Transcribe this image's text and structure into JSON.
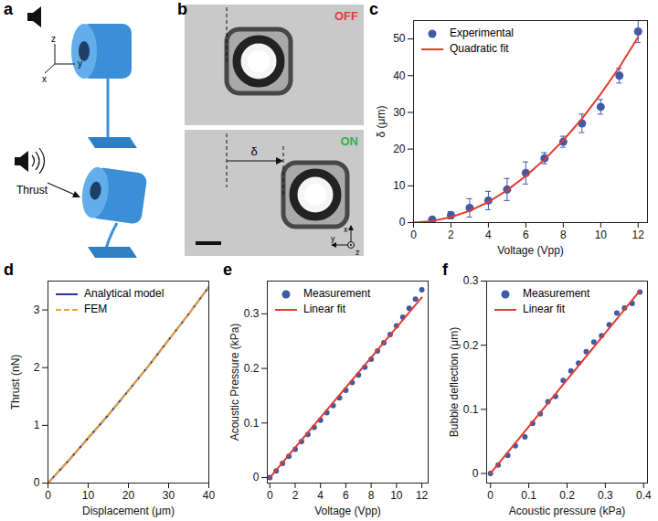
{
  "chart_data": [
    {
      "type": "diagram",
      "title": "a",
      "annotations": [
        "x",
        "y",
        "z",
        "Thrust"
      ]
    },
    {
      "type": "image",
      "title": "b",
      "annotations": [
        {
          "text": "OFF",
          "color": "#e8383d"
        },
        {
          "text": "ON",
          "color": "#2fb34a"
        },
        {
          "text": "δ"
        },
        {
          "text": "x"
        },
        {
          "text": "y"
        },
        {
          "text": "z"
        }
      ]
    },
    {
      "type": "scatter",
      "title": "c",
      "x_label": "Voltage (Vpp)",
      "y_label": "δ (μm)",
      "xlim": [
        0,
        12.5
      ],
      "ylim": [
        0,
        55
      ],
      "xticks": [
        0,
        2,
        4,
        6,
        8,
        10,
        12
      ],
      "yticks": [
        0,
        10,
        20,
        30,
        40,
        50
      ],
      "legend": "top-left",
      "series": [
        {
          "name": "Experimental",
          "type": "scatter",
          "marker": "circle",
          "color": "#3d5ba9",
          "x": [
            1,
            2,
            3,
            4,
            5,
            6,
            7,
            8,
            9,
            10,
            11,
            12
          ],
          "values": [
            0.8,
            2,
            4,
            6,
            9,
            13.5,
            17.5,
            22,
            27,
            31.5,
            40,
            52
          ],
          "errors": [
            0.5,
            1,
            2.5,
            2.5,
            3,
            3,
            1.5,
            1.5,
            2.5,
            2,
            2,
            3
          ]
        },
        {
          "name": "Quadratic fit",
          "type": "line",
          "line_style": "solid",
          "color": "#e53a2f",
          "x": [
            0,
            1,
            2,
            3,
            4,
            5,
            6,
            7,
            8,
            9,
            10,
            11,
            12
          ],
          "values": [
            0,
            0.4,
            1.5,
            3.2,
            5.6,
            8.8,
            12.7,
            17.2,
            22.4,
            28.3,
            35,
            42.3,
            50.5
          ]
        }
      ]
    },
    {
      "type": "line",
      "title": "d",
      "x_label": "Displacement (μm)",
      "y_label": "Thrust (nN)",
      "xlim": [
        0,
        40
      ],
      "ylim": [
        0,
        3.5
      ],
      "xticks": [
        0,
        10,
        20,
        30,
        40
      ],
      "yticks": [
        0,
        1,
        2,
        3
      ],
      "legend": "top-left",
      "series": [
        {
          "name": "Analytical model",
          "type": "line",
          "line_style": "solid",
          "color": "#2b3a8c",
          "x": [
            0,
            5,
            10,
            15,
            20,
            25,
            30,
            35,
            40
          ],
          "values": [
            0,
            0.38,
            0.78,
            1.18,
            1.6,
            2.03,
            2.48,
            2.93,
            3.4
          ]
        },
        {
          "name": "FEM",
          "type": "line",
          "line_style": "dashed",
          "color": "#f0a030",
          "x": [
            0,
            5,
            10,
            15,
            20,
            25,
            30,
            35,
            40
          ],
          "values": [
            0,
            0.38,
            0.78,
            1.18,
            1.6,
            2.03,
            2.48,
            2.93,
            3.4
          ]
        }
      ]
    },
    {
      "type": "scatter",
      "title": "e",
      "x_label": "Voltage (Vpp)",
      "y_label": "Acoustic Pressure (kPa)",
      "xlim": [
        -0.2,
        12.5
      ],
      "ylim": [
        -0.01,
        0.36
      ],
      "xticks": [
        0,
        2,
        4,
        6,
        8,
        10,
        12
      ],
      "yticks": [
        0,
        0.1,
        0.2,
        0.3
      ],
      "legend": "top-left",
      "series": [
        {
          "name": "Measurement",
          "type": "scatter",
          "marker": "circle",
          "color": "#3d5ba9",
          "x": [
            0,
            0.5,
            1,
            1.5,
            2,
            2.5,
            3,
            3.5,
            4,
            4.5,
            5,
            5.5,
            6,
            6.5,
            7,
            7.5,
            8,
            8.5,
            9,
            9.5,
            10,
            10.5,
            11,
            11.5,
            12
          ],
          "values": [
            0,
            0.012,
            0.026,
            0.039,
            0.052,
            0.066,
            0.079,
            0.092,
            0.105,
            0.119,
            0.132,
            0.146,
            0.16,
            0.174,
            0.188,
            0.202,
            0.217,
            0.232,
            0.247,
            0.262,
            0.278,
            0.294,
            0.31,
            0.327,
            0.344
          ]
        },
        {
          "name": "Linear fit",
          "type": "line",
          "line_style": "solid",
          "color": "#e53a2f",
          "x": [
            0,
            12
          ],
          "values": [
            0,
            0.33
          ]
        }
      ]
    },
    {
      "type": "scatter",
      "title": "f",
      "x_label": "Acoustic pressure (kPa)",
      "y_label": "Bubble deflection (μm)",
      "xlim": [
        -0.01,
        0.41
      ],
      "ylim": [
        -0.015,
        0.3
      ],
      "xticks": [
        0,
        0.1,
        0.2,
        0.3,
        0.4
      ],
      "yticks": [
        0,
        0.1,
        0.2,
        0.3
      ],
      "legend": "top-left",
      "series": [
        {
          "name": "Measurement",
          "type": "scatter",
          "marker": "circle",
          "color": "#3d5ba9",
          "x": [
            0,
            0.02,
            0.045,
            0.065,
            0.09,
            0.11,
            0.13,
            0.15,
            0.17,
            0.19,
            0.21,
            0.23,
            0.25,
            0.27,
            0.29,
            0.31,
            0.33,
            0.35,
            0.37,
            0.39
          ],
          "values": [
            0,
            0.013,
            0.028,
            0.043,
            0.057,
            0.078,
            0.093,
            0.112,
            0.12,
            0.145,
            0.16,
            0.172,
            0.19,
            0.205,
            0.215,
            0.232,
            0.25,
            0.258,
            0.265,
            0.283
          ]
        },
        {
          "name": "Linear fit",
          "type": "line",
          "line_style": "solid",
          "color": "#e53a2f",
          "x": [
            0,
            0.39
          ],
          "values": [
            0,
            0.285
          ]
        }
      ]
    }
  ]
}
